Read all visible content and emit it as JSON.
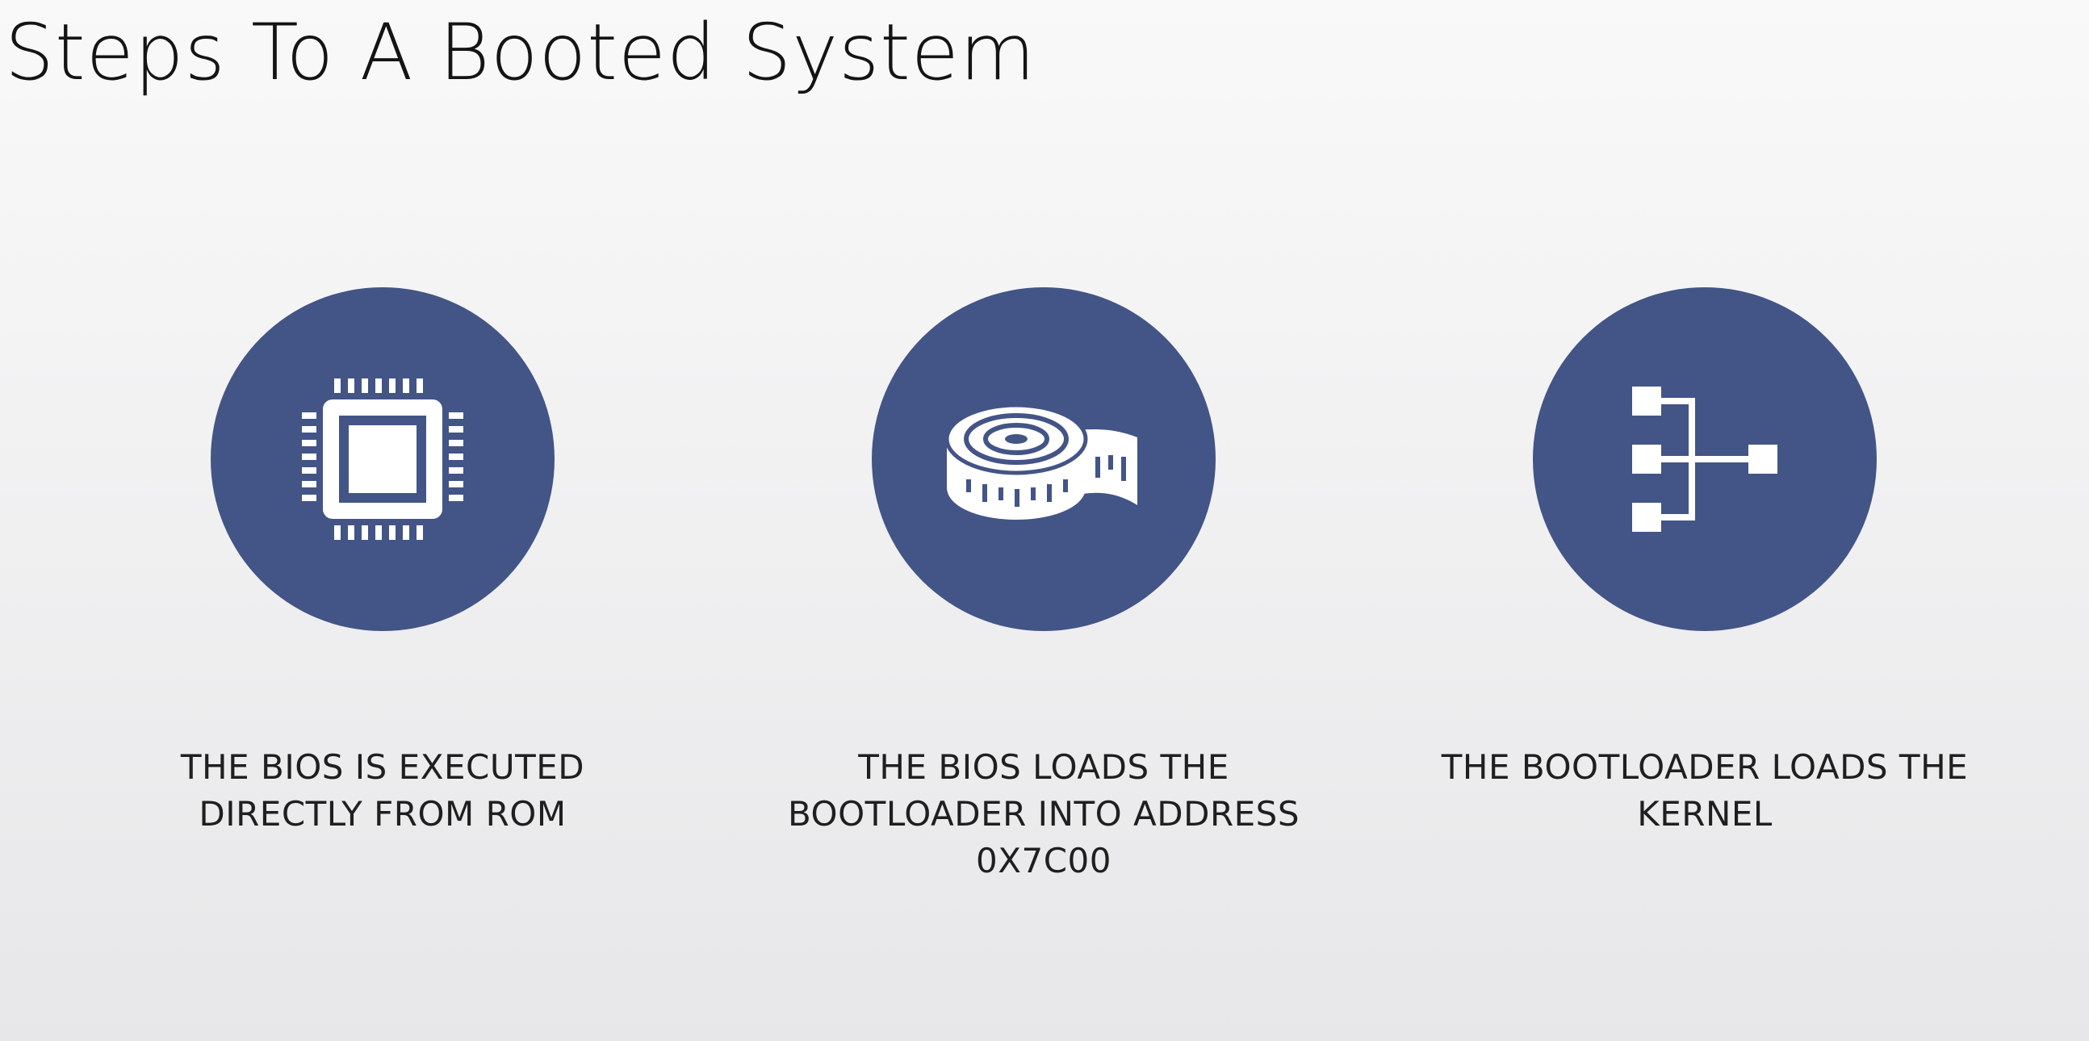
{
  "title": "Steps To A Booted System",
  "accent_color": "#435486",
  "steps": [
    {
      "icon": "cpu-chip-icon",
      "caption_lines": [
        "THE BIOS IS EXECUTED",
        "DIRECTLY FROM ROM"
      ]
    },
    {
      "icon": "measuring-tape-icon",
      "caption_lines": [
        "THE BIOS LOADS THE",
        "BOOTLOADER INTO ADDRESS",
        "0X7C00"
      ]
    },
    {
      "icon": "hierarchy-tree-icon",
      "caption_lines": [
        "THE BOOTLOADER LOADS THE",
        "KERNEL"
      ]
    }
  ]
}
